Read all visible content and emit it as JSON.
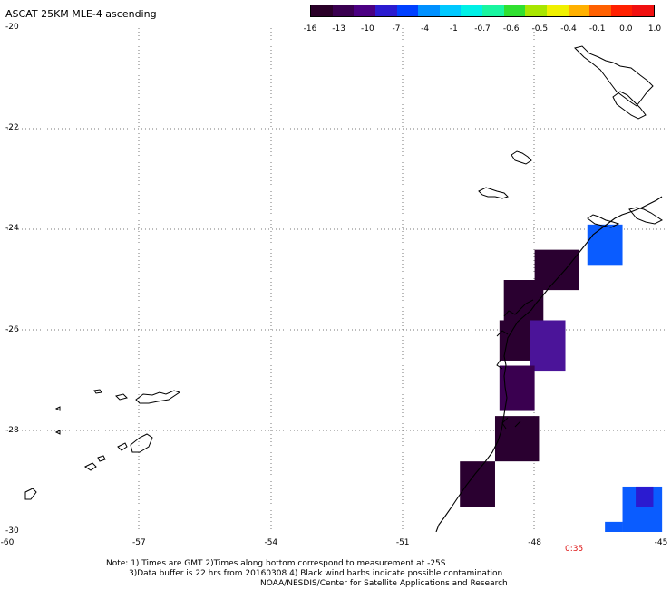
{
  "title": "ASCAT 25KM MLE-4 ascending",
  "colorbar": {
    "colors": [
      "#2a0028",
      "#3a0050",
      "#4b0082",
      "#2b1bd0",
      "#0040ff",
      "#0090ff",
      "#00c8ff",
      "#00f0e6",
      "#19f5a0",
      "#30e030",
      "#a8e600",
      "#f0f000",
      "#ffb000",
      "#ff6000",
      "#ff2000",
      "#f01010"
    ],
    "labels": [
      "-16",
      "-13",
      "-10",
      "-7",
      "-4",
      "-1",
      "-0.7",
      "-0.6",
      "-0.5",
      "-0.4",
      "-0.1",
      "0.0",
      "1.0"
    ]
  },
  "axes": {
    "y_labels": [
      "-20",
      "-22",
      "-24",
      "-26",
      "-28",
      "-30"
    ],
    "x_labels": [
      "-60",
      "-57",
      "-54",
      "-51",
      "-48",
      "-45"
    ],
    "lat_range": [
      -30,
      -20
    ],
    "lon_range": [
      -60,
      -45
    ]
  },
  "pass_time": "0:35",
  "notes": {
    "line1": "Note: 1) Times are GMT 2)Times along bottom correspond to measurement at -25S",
    "line2": "3)Data buffer is 22 hrs from 20160308 4) Black wind barbs indicate possible contamination",
    "line3": "NOAA/NESDIS/Center for Satellite Applications and Research"
  },
  "data_cells": [
    {
      "lon_min": -48.0,
      "lon_max": -47.0,
      "lat_min": -25.2,
      "lat_max": -24.4,
      "color": "#2a0030"
    },
    {
      "lon_min": -48.7,
      "lon_max": -47.8,
      "lat_min": -25.9,
      "lat_max": -25.0,
      "color": "#2a0030"
    },
    {
      "lon_min": -48.8,
      "lon_max": -48.0,
      "lat_min": -26.6,
      "lat_max": -25.8,
      "color": "#2a0030"
    },
    {
      "lon_min": -48.1,
      "lon_max": -47.3,
      "lat_min": -26.8,
      "lat_max": -25.8,
      "color": "#4b1499"
    },
    {
      "lon_min": -48.8,
      "lon_max": -48.0,
      "lat_min": -27.6,
      "lat_max": -26.7,
      "color": "#3a0050"
    },
    {
      "lon_min": -48.9,
      "lon_max": -48.1,
      "lat_min": -28.6,
      "lat_max": -27.7,
      "color": "#2a0030"
    },
    {
      "lon_min": -48.1,
      "lon_max": -47.9,
      "lat_min": -28.6,
      "lat_max": -27.7,
      "color": "#2a0030"
    },
    {
      "lon_min": -49.7,
      "lon_max": -48.9,
      "lat_min": -29.5,
      "lat_max": -28.6,
      "color": "#2a0030"
    },
    {
      "lon_min": -46.8,
      "lon_max": -46.0,
      "lat_min": -24.7,
      "lat_max": -23.9,
      "color": "#0a5cff"
    },
    {
      "lon_min": -46.0,
      "lon_max": -45.1,
      "lat_min": -30.0,
      "lat_max": -29.1,
      "color": "#0a5cff"
    },
    {
      "lon_min": -45.7,
      "lon_max": -45.3,
      "lat_min": -29.5,
      "lat_max": -29.1,
      "color": "#2b1bd0"
    },
    {
      "lon_min": -46.4,
      "lon_max": -46.0,
      "lat_min": -30.0,
      "lat_max": -29.8,
      "color": "#0a5cff"
    }
  ]
}
